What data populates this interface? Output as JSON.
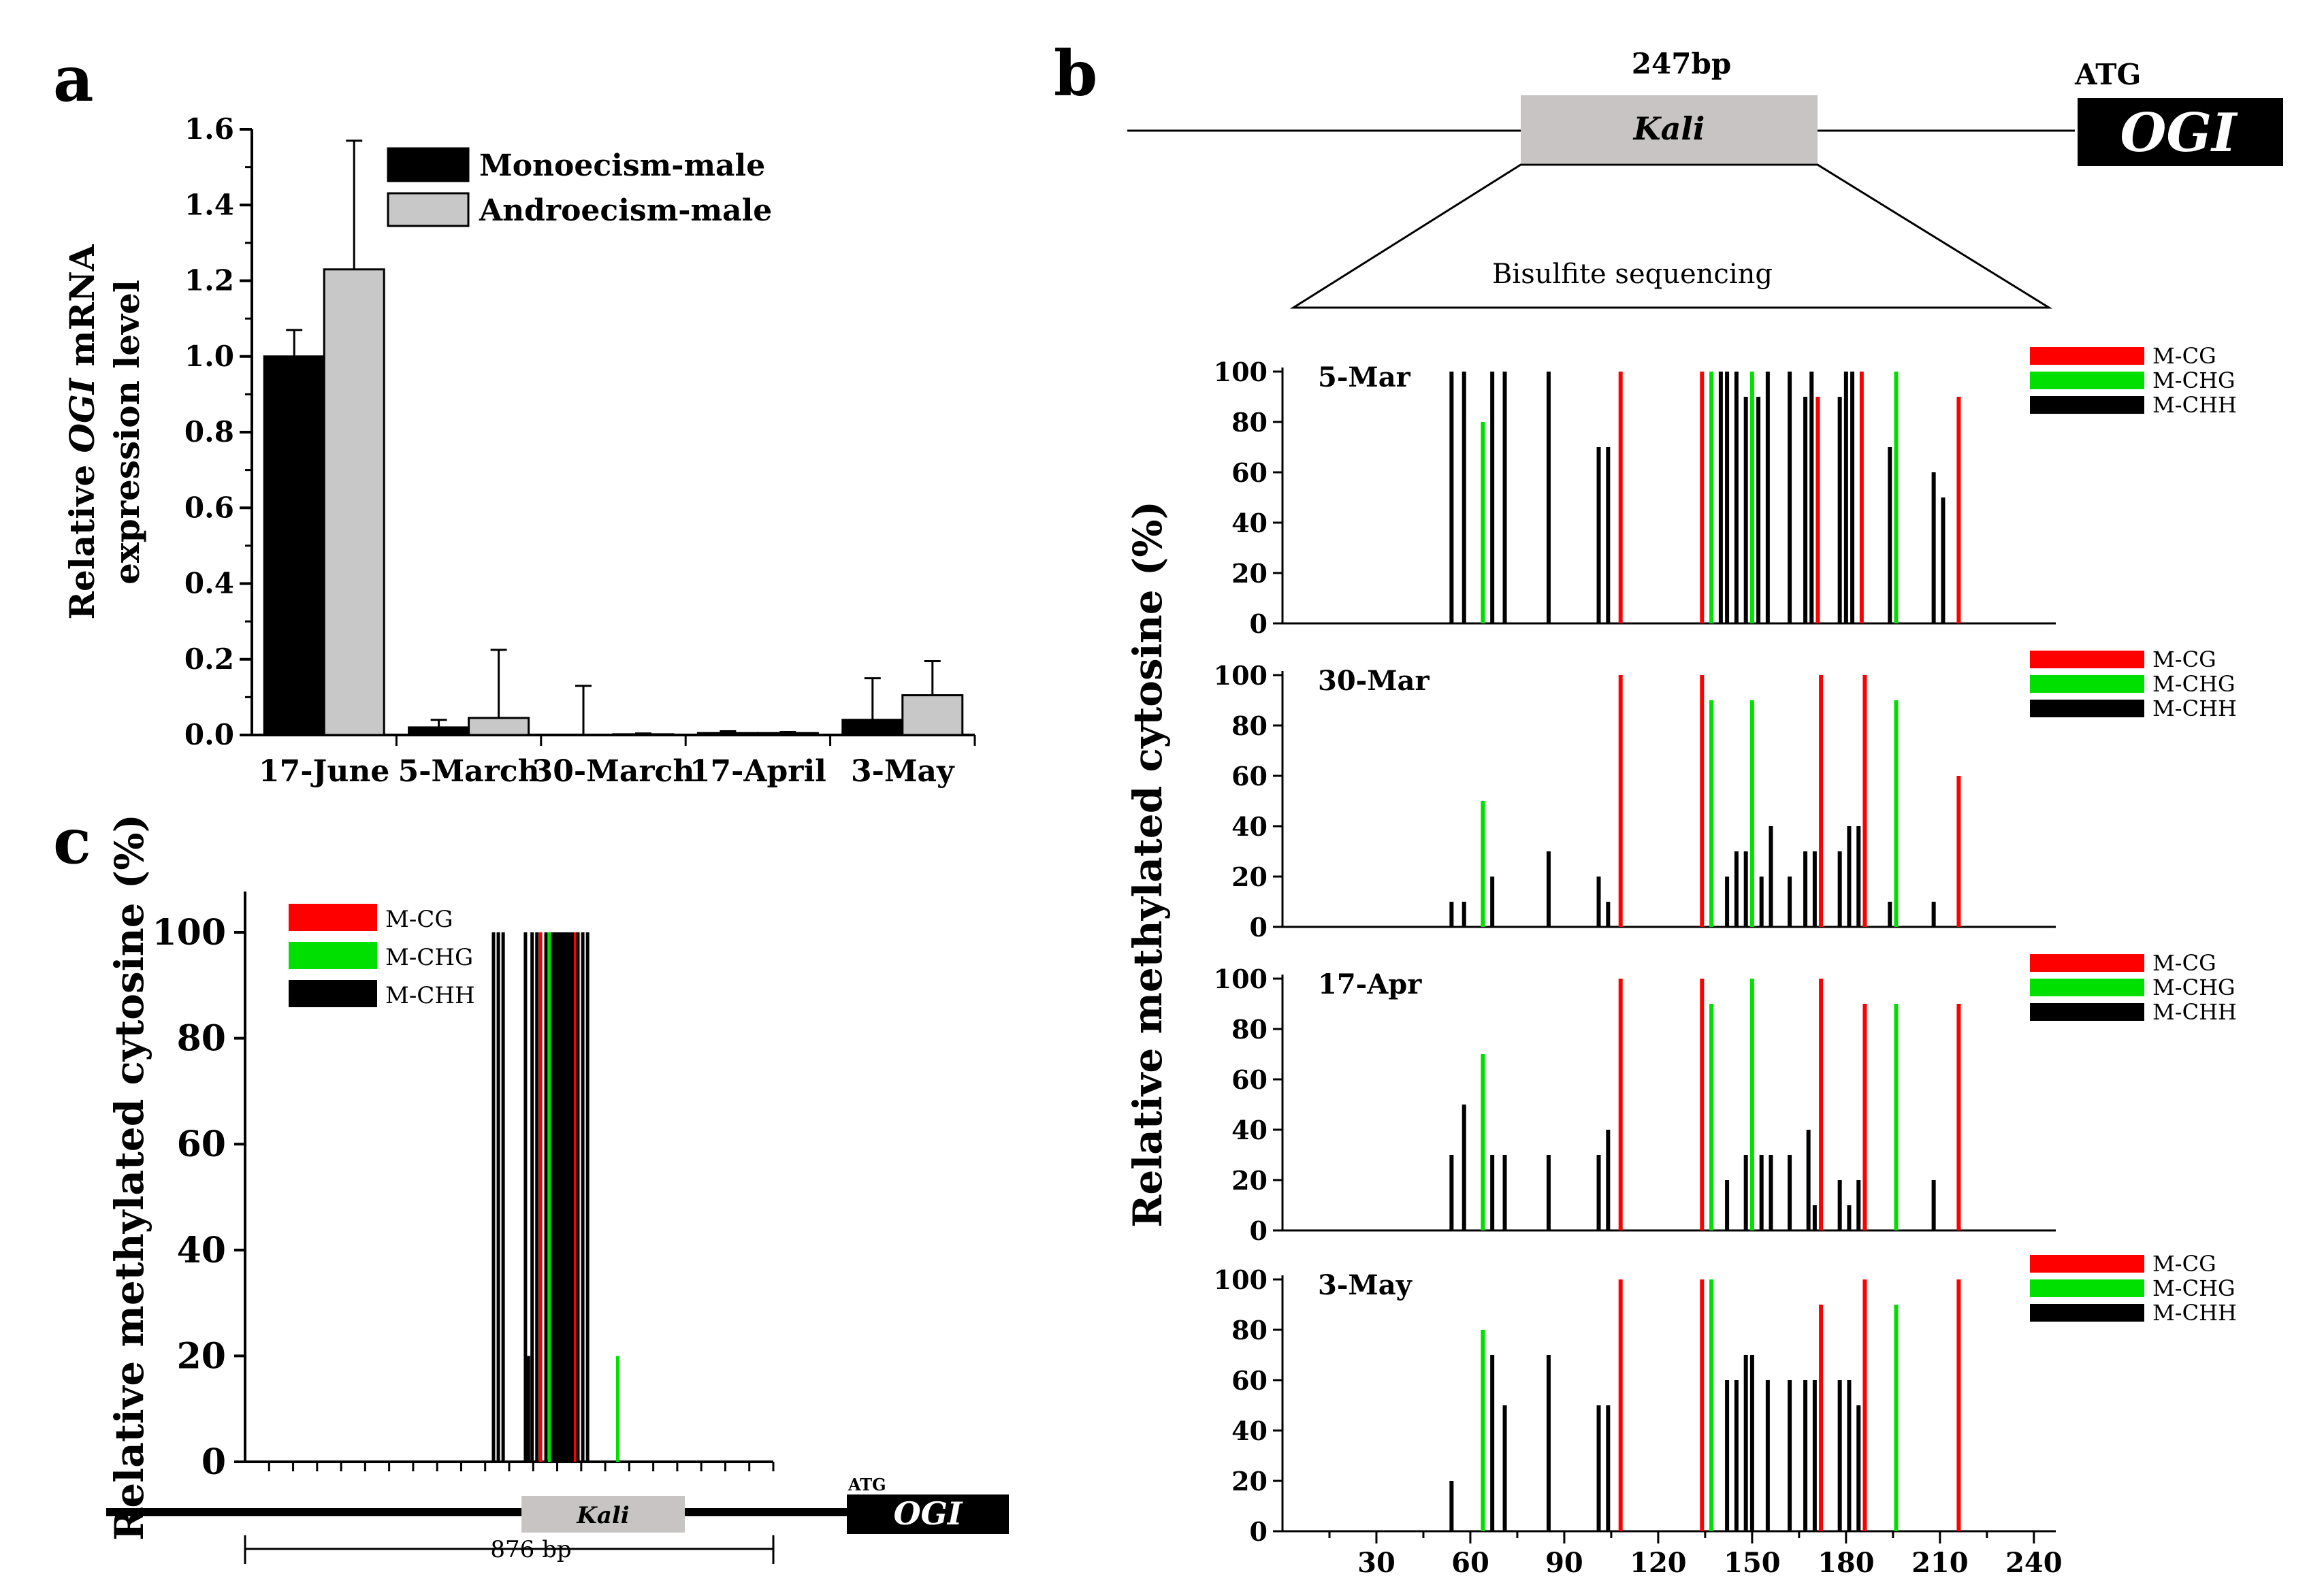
{
  "colors": {
    "cg": "#ff0000",
    "chg": "#00e000",
    "chh": "#000000",
    "mono": "#000000",
    "andro": "#c8c8c8",
    "kali_box": "#c8c4c4"
  },
  "chart_data": [
    {
      "panel": "a",
      "type": "bar",
      "title": "",
      "ylabel": "Relative OGI mRNA expression level",
      "ylabel_lines": [
        "Relative ",
        "OGI",
        " mRNA",
        "expression level"
      ],
      "xlabel": "",
      "ylim": [
        0,
        1.6
      ],
      "yticks": [
        "0.0",
        "0.2",
        "0.4",
        "0.6",
        "0.8",
        "1.0",
        "1.2",
        "1.4",
        "1.6"
      ],
      "categories": [
        "17-June",
        "5-March",
        "30-March",
        "17-April",
        "3-May"
      ],
      "series": [
        {
          "name": "Monoecism-male",
          "values": [
            1.0,
            0.02,
            0.0,
            0.005,
            0.04
          ],
          "errors": [
            0.07,
            0.02,
            0.13,
            0.005,
            0.11
          ]
        },
        {
          "name": "Androecism-male",
          "values": [
            1.23,
            0.045,
            0.002,
            0.005,
            0.105
          ],
          "errors": [
            0.34,
            0.18,
            0.002,
            0.003,
            0.09
          ]
        }
      ],
      "legend_position": "top-right"
    },
    {
      "panel": "b",
      "type": "bar",
      "ylabel": "Relative methylated cytosine (%)",
      "xticks": [
        "30",
        "60",
        "90",
        "120",
        "150",
        "180",
        "210",
        "240"
      ],
      "yticks": [
        "0",
        "20",
        "40",
        "60",
        "80",
        "100"
      ],
      "xlim": [
        0,
        247
      ],
      "ylim": [
        0,
        100
      ],
      "legend": [
        "M-CG",
        "M-CHG",
        "M-CHH"
      ],
      "diagram": {
        "length_label": "247bp",
        "element_label": "Kali",
        "gene_label": "OGI",
        "start_codon": "ATG",
        "method_label": "Bisulfite sequencing"
      },
      "subplots": [
        {
          "label": "5-Mar",
          "sites": [
            {
              "pos": 54,
              "type": "CHH",
              "value": 100
            },
            {
              "pos": 58,
              "type": "CHH",
              "value": 100
            },
            {
              "pos": 64,
              "type": "CHG",
              "value": 80
            },
            {
              "pos": 67,
              "type": "CHH",
              "value": 100
            },
            {
              "pos": 71,
              "type": "CHH",
              "value": 100
            },
            {
              "pos": 85,
              "type": "CHH",
              "value": 100
            },
            {
              "pos": 101,
              "type": "CHH",
              "value": 70
            },
            {
              "pos": 104,
              "type": "CHH",
              "value": 70
            },
            {
              "pos": 108,
              "type": "CG",
              "value": 100
            },
            {
              "pos": 134,
              "type": "CG",
              "value": 100
            },
            {
              "pos": 137,
              "type": "CHG",
              "value": 100
            },
            {
              "pos": 140,
              "type": "CHH",
              "value": 100
            },
            {
              "pos": 142,
              "type": "CHH",
              "value": 100
            },
            {
              "pos": 145,
              "type": "CHH",
              "value": 100
            },
            {
              "pos": 148,
              "type": "CHH",
              "value": 90
            },
            {
              "pos": 150,
              "type": "CHG",
              "value": 100
            },
            {
              "pos": 152,
              "type": "CHH",
              "value": 90
            },
            {
              "pos": 155,
              "type": "CHH",
              "value": 100
            },
            {
              "pos": 162,
              "type": "CHH",
              "value": 100
            },
            {
              "pos": 167,
              "type": "CHH",
              "value": 90
            },
            {
              "pos": 169,
              "type": "CHH",
              "value": 100
            },
            {
              "pos": 171,
              "type": "CG",
              "value": 90
            },
            {
              "pos": 178,
              "type": "CHH",
              "value": 90
            },
            {
              "pos": 180,
              "type": "CHH",
              "value": 100
            },
            {
              "pos": 182,
              "type": "CHH",
              "value": 100
            },
            {
              "pos": 185,
              "type": "CG",
              "value": 100
            },
            {
              "pos": 194,
              "type": "CHH",
              "value": 70
            },
            {
              "pos": 196,
              "type": "CHG",
              "value": 100
            },
            {
              "pos": 208,
              "type": "CHH",
              "value": 60
            },
            {
              "pos": 211,
              "type": "CHH",
              "value": 50
            },
            {
              "pos": 216,
              "type": "CG",
              "value": 90
            }
          ]
        },
        {
          "label": "30-Mar",
          "sites": [
            {
              "pos": 54,
              "type": "CHH",
              "value": 10
            },
            {
              "pos": 58,
              "type": "CHH",
              "value": 10
            },
            {
              "pos": 64,
              "type": "CHG",
              "value": 50
            },
            {
              "pos": 67,
              "type": "CHH",
              "value": 20
            },
            {
              "pos": 85,
              "type": "CHH",
              "value": 30
            },
            {
              "pos": 101,
              "type": "CHH",
              "value": 20
            },
            {
              "pos": 104,
              "type": "CHH",
              "value": 10
            },
            {
              "pos": 108,
              "type": "CG",
              "value": 100
            },
            {
              "pos": 134,
              "type": "CG",
              "value": 100
            },
            {
              "pos": 137,
              "type": "CHG",
              "value": 90
            },
            {
              "pos": 142,
              "type": "CHH",
              "value": 20
            },
            {
              "pos": 145,
              "type": "CHH",
              "value": 30
            },
            {
              "pos": 148,
              "type": "CHH",
              "value": 30
            },
            {
              "pos": 150,
              "type": "CHG",
              "value": 90
            },
            {
              "pos": 153,
              "type": "CHH",
              "value": 20
            },
            {
              "pos": 156,
              "type": "CHH",
              "value": 40
            },
            {
              "pos": 162,
              "type": "CHH",
              "value": 20
            },
            {
              "pos": 167,
              "type": "CHH",
              "value": 30
            },
            {
              "pos": 170,
              "type": "CHH",
              "value": 30
            },
            {
              "pos": 172,
              "type": "CG",
              "value": 100
            },
            {
              "pos": 178,
              "type": "CHH",
              "value": 30
            },
            {
              "pos": 181,
              "type": "CHH",
              "value": 40
            },
            {
              "pos": 184,
              "type": "CHH",
              "value": 40
            },
            {
              "pos": 186,
              "type": "CG",
              "value": 100
            },
            {
              "pos": 194,
              "type": "CHH",
              "value": 10
            },
            {
              "pos": 196,
              "type": "CHG",
              "value": 90
            },
            {
              "pos": 208,
              "type": "CHH",
              "value": 10
            },
            {
              "pos": 216,
              "type": "CG",
              "value": 60
            }
          ]
        },
        {
          "label": "17-Apr",
          "sites": [
            {
              "pos": 54,
              "type": "CHH",
              "value": 30
            },
            {
              "pos": 58,
              "type": "CHH",
              "value": 50
            },
            {
              "pos": 64,
              "type": "CHG",
              "value": 70
            },
            {
              "pos": 67,
              "type": "CHH",
              "value": 30
            },
            {
              "pos": 71,
              "type": "CHH",
              "value": 30
            },
            {
              "pos": 85,
              "type": "CHH",
              "value": 30
            },
            {
              "pos": 101,
              "type": "CHH",
              "value": 30
            },
            {
              "pos": 104,
              "type": "CHH",
              "value": 40
            },
            {
              "pos": 108,
              "type": "CG",
              "value": 100
            },
            {
              "pos": 134,
              "type": "CG",
              "value": 100
            },
            {
              "pos": 137,
              "type": "CHG",
              "value": 90
            },
            {
              "pos": 142,
              "type": "CHH",
              "value": 20
            },
            {
              "pos": 150,
              "type": "CHG",
              "value": 100
            },
            {
              "pos": 148,
              "type": "CHH",
              "value": 30
            },
            {
              "pos": 153,
              "type": "CHH",
              "value": 30
            },
            {
              "pos": 156,
              "type": "CHH",
              "value": 30
            },
            {
              "pos": 162,
              "type": "CHH",
              "value": 30
            },
            {
              "pos": 168,
              "type": "CHH",
              "value": 40
            },
            {
              "pos": 170,
              "type": "CHH",
              "value": 10
            },
            {
              "pos": 172,
              "type": "CG",
              "value": 100
            },
            {
              "pos": 178,
              "type": "CHH",
              "value": 20
            },
            {
              "pos": 181,
              "type": "CHH",
              "value": 10
            },
            {
              "pos": 184,
              "type": "CHH",
              "value": 20
            },
            {
              "pos": 186,
              "type": "CG",
              "value": 90
            },
            {
              "pos": 196,
              "type": "CHG",
              "value": 90
            },
            {
              "pos": 208,
              "type": "CHH",
              "value": 20
            },
            {
              "pos": 216,
              "type": "CG",
              "value": 90
            }
          ]
        },
        {
          "label": "3-May",
          "sites": [
            {
              "pos": 54,
              "type": "CHH",
              "value": 20
            },
            {
              "pos": 64,
              "type": "CHG",
              "value": 80
            },
            {
              "pos": 67,
              "type": "CHH",
              "value": 70
            },
            {
              "pos": 71,
              "type": "CHH",
              "value": 50
            },
            {
              "pos": 85,
              "type": "CHH",
              "value": 70
            },
            {
              "pos": 101,
              "type": "CHH",
              "value": 50
            },
            {
              "pos": 104,
              "type": "CHH",
              "value": 50
            },
            {
              "pos": 108,
              "type": "CG",
              "value": 100
            },
            {
              "pos": 134,
              "type": "CG",
              "value": 100
            },
            {
              "pos": 137,
              "type": "CHG",
              "value": 100
            },
            {
              "pos": 142,
              "type": "CHH",
              "value": 60
            },
            {
              "pos": 145,
              "type": "CHH",
              "value": 60
            },
            {
              "pos": 148,
              "type": "CHH",
              "value": 70
            },
            {
              "pos": 150,
              "type": "CHH",
              "value": 70
            },
            {
              "pos": 155,
              "type": "CHH",
              "value": 60
            },
            {
              "pos": 162,
              "type": "CHH",
              "value": 60
            },
            {
              "pos": 167,
              "type": "CHH",
              "value": 60
            },
            {
              "pos": 170,
              "type": "CHH",
              "value": 60
            },
            {
              "pos": 172,
              "type": "CG",
              "value": 90
            },
            {
              "pos": 178,
              "type": "CHH",
              "value": 60
            },
            {
              "pos": 181,
              "type": "CHH",
              "value": 60
            },
            {
              "pos": 184,
              "type": "CHH",
              "value": 50
            },
            {
              "pos": 186,
              "type": "CG",
              "value": 100
            },
            {
              "pos": 196,
              "type": "CHG",
              "value": 90
            },
            {
              "pos": 216,
              "type": "CG",
              "value": 100
            }
          ]
        }
      ]
    },
    {
      "panel": "c",
      "type": "bar",
      "ylabel": "Relative methylated cytosine (%)",
      "yticks": [
        "0",
        "20",
        "40",
        "60",
        "80",
        "100"
      ],
      "ylim": [
        0,
        100
      ],
      "xlim": [
        0,
        876
      ],
      "legend": [
        "M-CG",
        "M-CHG",
        "M-CHH"
      ],
      "diagram": {
        "length_label": "876 bp",
        "element_label": "Kali",
        "gene_label": "OGI",
        "start_codon": "ATG"
      },
      "sites": [
        {
          "pos": 412,
          "type": "CHH",
          "value": 100
        },
        {
          "pos": 420,
          "type": "CHH",
          "value": 100
        },
        {
          "pos": 428,
          "type": "CHH",
          "value": 100
        },
        {
          "pos": 465,
          "type": "CHH",
          "value": 100
        },
        {
          "pos": 470,
          "type": "CHH",
          "value": 20
        },
        {
          "pos": 476,
          "type": "CHH",
          "value": 100
        },
        {
          "pos": 484,
          "type": "CHH",
          "value": 100
        },
        {
          "pos": 490,
          "type": "CG",
          "value": 100
        },
        {
          "pos": 499,
          "type": "CHH",
          "value": 100
        },
        {
          "pos": 505,
          "type": "CHG",
          "value": 100
        },
        {
          "pos": 510,
          "type": "CHH",
          "value": 100
        },
        {
          "pos": 514,
          "type": "CHH",
          "value": 100
        },
        {
          "pos": 518,
          "type": "CHH",
          "value": 100
        },
        {
          "pos": 522,
          "type": "CHH",
          "value": 100
        },
        {
          "pos": 526,
          "type": "CHH",
          "value": 100
        },
        {
          "pos": 530,
          "type": "CHH",
          "value": 100
        },
        {
          "pos": 535,
          "type": "CHH",
          "value": 100
        },
        {
          "pos": 539,
          "type": "CHH",
          "value": 100
        },
        {
          "pos": 544,
          "type": "CHH",
          "value": 100
        },
        {
          "pos": 548,
          "type": "CG",
          "value": 100
        },
        {
          "pos": 552,
          "type": "CHH",
          "value": 100
        },
        {
          "pos": 560,
          "type": "CHH",
          "value": 100
        },
        {
          "pos": 568,
          "type": "CHH",
          "value": 100
        },
        {
          "pos": 618,
          "type": "CHG",
          "value": 20
        }
      ]
    }
  ],
  "panel_letters": [
    "a",
    "b",
    "c"
  ],
  "legend_labels": {
    "cg": "M-CG",
    "chg": "M-CHG",
    "chh": "M-CHH"
  }
}
